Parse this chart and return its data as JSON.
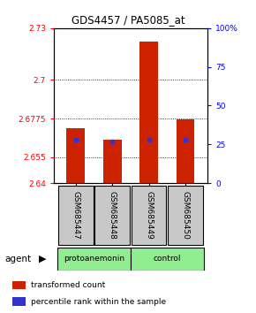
{
  "title": "GDS4457 / PA5085_at",
  "samples": [
    "GSM685447",
    "GSM685448",
    "GSM685449",
    "GSM685450"
  ],
  "groups": [
    "protoanemonin",
    "protoanemonin",
    "control",
    "control"
  ],
  "bar_values": [
    2.672,
    2.665,
    2.722,
    2.677
  ],
  "bar_bottom": 2.64,
  "percentile_values": [
    28,
    27,
    28,
    28
  ],
  "bar_color": "#cc2200",
  "percentile_color": "#3333cc",
  "ylim_left": [
    2.64,
    2.73
  ],
  "ylim_right": [
    0,
    100
  ],
  "yticks_left": [
    2.64,
    2.655,
    2.6775,
    2.7,
    2.73
  ],
  "ytick_labels_left": [
    "2.64",
    "2.655",
    "2.6775",
    "2.7",
    "2.73"
  ],
  "yticks_right": [
    0,
    25,
    50,
    75,
    100
  ],
  "ytick_labels_right": [
    "0",
    "25",
    "50",
    "75",
    "100%"
  ],
  "grid_vals": [
    2.655,
    2.6775,
    2.7
  ],
  "bg_color": "#ffffff",
  "plot_bg": "#ffffff",
  "group_label": "agent",
  "green_color": "#90EE90",
  "grey_color": "#c8c8c8",
  "legend_items": [
    {
      "label": "transformed count",
      "color": "#cc2200"
    },
    {
      "label": "percentile rank within the sample",
      "color": "#3333cc"
    }
  ]
}
